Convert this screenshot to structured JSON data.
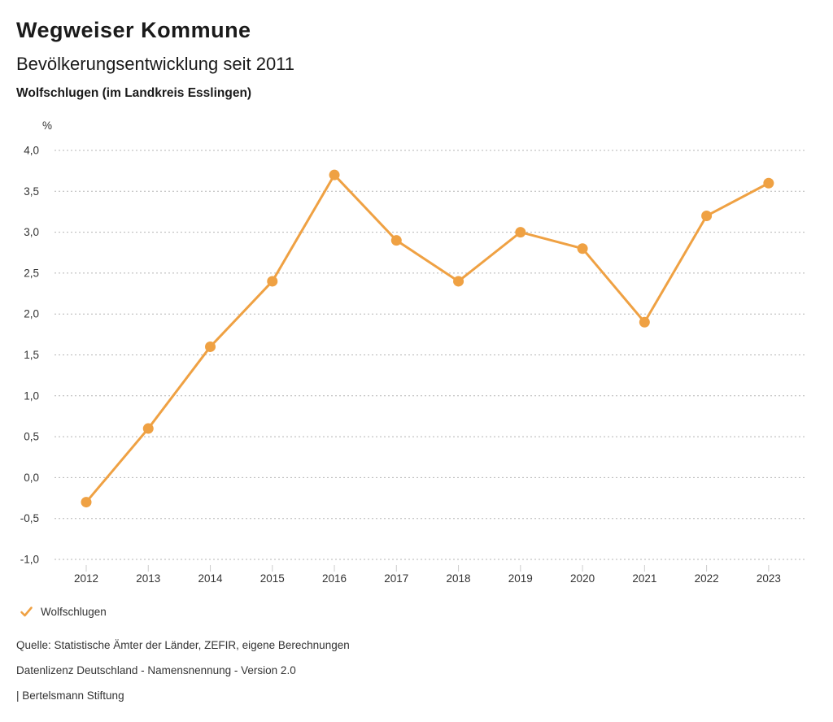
{
  "header": {
    "title": "Wegweiser Kommune",
    "subtitle": "Bevölkerungsentwicklung seit 2011",
    "location": "Wolfschlugen (im Landkreis Esslingen)"
  },
  "chart_data": {
    "type": "line",
    "title": "Bevölkerungsentwicklung seit 2011",
    "unit_label": "%",
    "categories": [
      "2012",
      "2013",
      "2014",
      "2015",
      "2016",
      "2017",
      "2018",
      "2019",
      "2020",
      "2021",
      "2022",
      "2023"
    ],
    "series": [
      {
        "name": "Wolfschlugen",
        "color": "#efa143",
        "values": [
          -0.3,
          0.6,
          1.6,
          2.4,
          3.7,
          2.9,
          2.4,
          3.0,
          2.8,
          1.9,
          3.2,
          3.6
        ]
      }
    ],
    "ylim": [
      -1.0,
      4.0
    ],
    "ytick_step": 0.5,
    "decimal_separator": ",",
    "grid": "horizontal-dotted",
    "legend_position": "bottom-left"
  },
  "legend": {
    "items": [
      {
        "label": "Wolfschlugen",
        "checked": true,
        "color": "#efa143"
      }
    ]
  },
  "footer": {
    "source": "Quelle: Statistische Ämter der Länder, ZEFIR, eigene Berechnungen",
    "license": "Datenlizenz Deutschland - Namensnennung - Version 2.0",
    "attribution": "| Bertelsmann Stiftung"
  }
}
